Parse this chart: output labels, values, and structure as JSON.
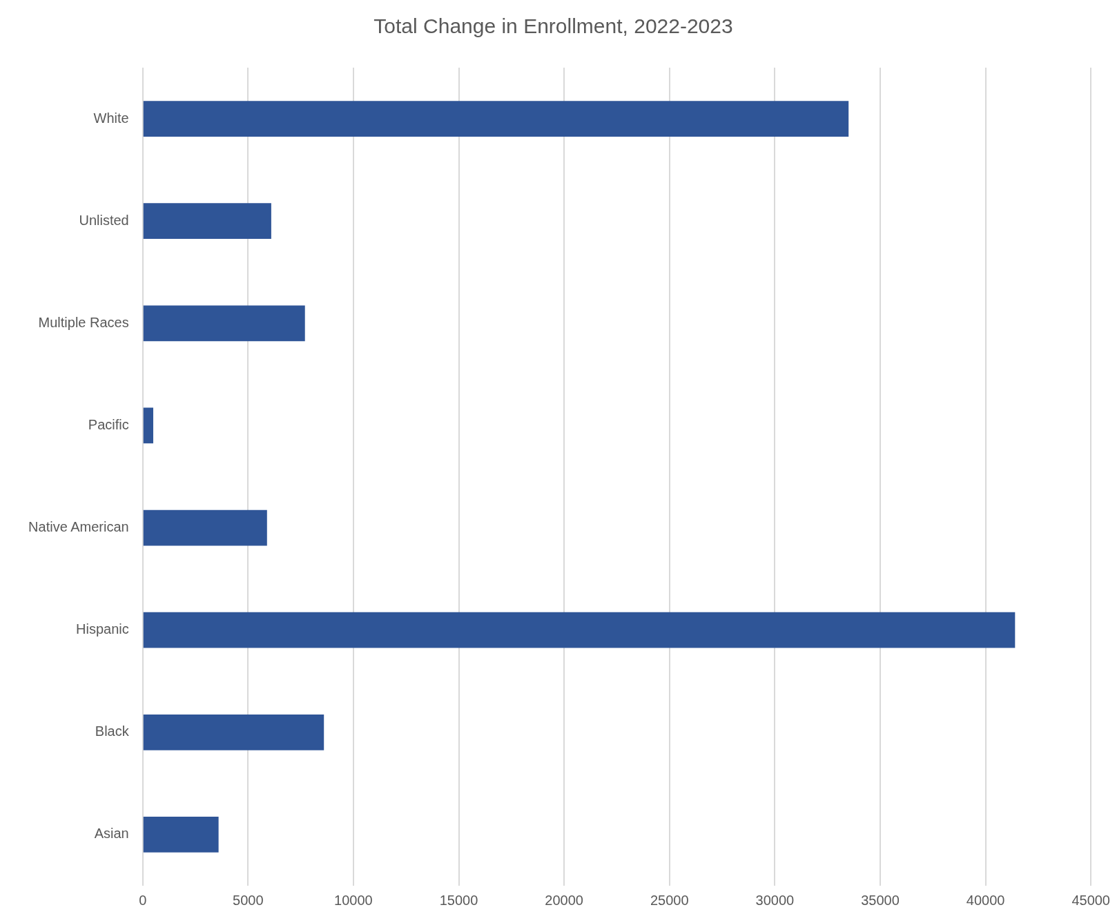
{
  "chart_data": {
    "type": "bar",
    "orientation": "horizontal",
    "title": "Total Change in Enrollment, 2022-2023",
    "categories": [
      "White",
      "Unlisted",
      "Multiple Races",
      "Pacific",
      "Native American",
      "Hispanic",
      "Black",
      "Asian"
    ],
    "values": [
      33500,
      6100,
      7700,
      500,
      5900,
      41400,
      8600,
      3600
    ],
    "color": "#2f5597",
    "xlim": [
      0,
      45000
    ],
    "xticks": [
      0,
      5000,
      10000,
      15000,
      20000,
      25000,
      30000,
      35000,
      40000,
      45000
    ],
    "grid": "x",
    "legend": false
  }
}
